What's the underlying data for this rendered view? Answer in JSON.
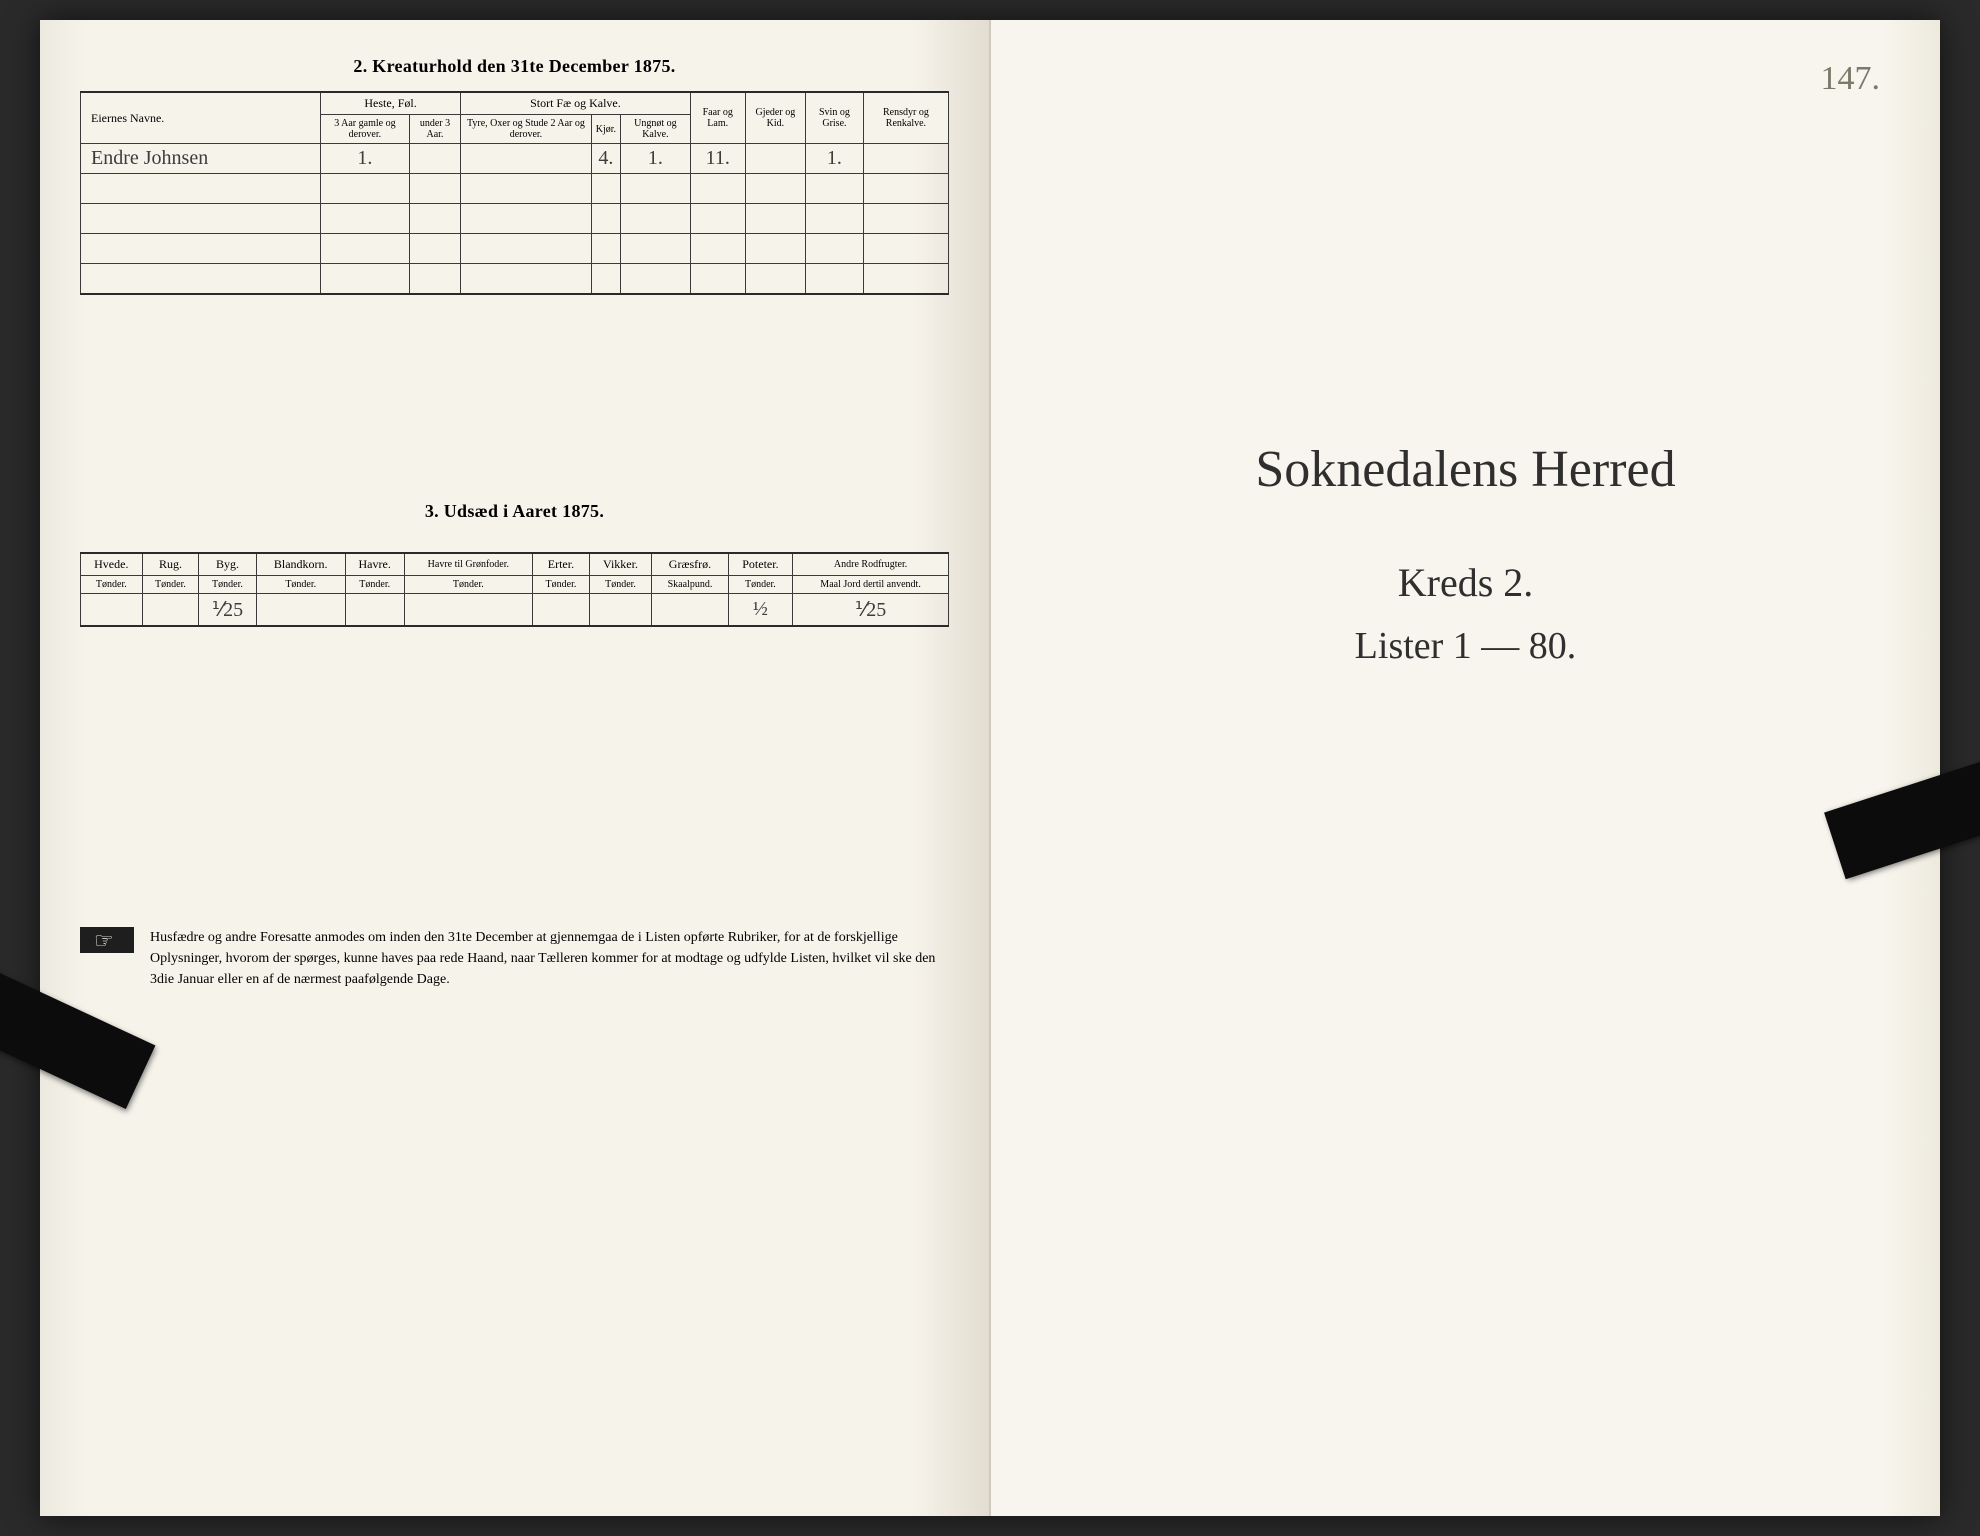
{
  "left": {
    "section2": {
      "title": "2.  Kreaturhold den 31te December 1875.",
      "col_owner": "Eiernes Navne.",
      "grp_heste": "Heste, Føl.",
      "grp_fae": "Stort Fæ og Kalve.",
      "col_faar": "Faar og Lam.",
      "col_gjed": "Gjeder og Kid.",
      "col_svin": "Svin og Grise.",
      "col_rens": "Rensdyr og Renkalve.",
      "sub_h1": "3 Aar gamle og derover.",
      "sub_h2": "under 3 Aar.",
      "sub_f1": "Tyre, Oxer og Stude 2 Aar og derover.",
      "sub_f2": "Kjør.",
      "sub_f3": "Ungnøt og Kalve.",
      "row_name": "Endre Johnsen",
      "v_h1": "1.",
      "v_f2": "4.",
      "v_f3": "1.",
      "v_faar": "11.",
      "v_svin": "1."
    },
    "section3": {
      "title": "3.  Udsæd i Aaret 1875.",
      "c_hvede": "Hvede.",
      "c_rug": "Rug.",
      "c_byg": "Byg.",
      "c_bland": "Blandkorn.",
      "c_havre": "Havre.",
      "c_havregr": "Havre til Grønfoder.",
      "c_erter": "Erter.",
      "c_vikker": "Vikker.",
      "c_graes": "Græsfrø.",
      "c_pot": "Poteter.",
      "c_rod": "Andre Rodfrugter.",
      "u_tonder": "Tønder.",
      "u_skaal": "Skaalpund.",
      "u_maal": "Maal Jord dertil anvendt.",
      "v_byg": "⅟25",
      "v_pot": "½",
      "v_rod": "⅟25"
    },
    "footnote": "Husfædre og andre Foresatte anmodes om inden den 31te December at gjennemgaa de i Listen opførte Rubriker, for at de forskjellige Oplysninger, hvorom der spørges, kunne haves paa rede Haand, naar Tælleren kommer for at modtage og udfylde Listen, hvilket vil ske den 3die Januar eller en af de nærmest paafølgende Dage."
  },
  "right": {
    "folio": "147.",
    "line1": "Soknedalens Herred",
    "line2": "Kreds 2.",
    "line3": "Lister 1 — 80."
  },
  "style": {
    "page_bg": "#f6f3eb",
    "ink": "#2a2a2a",
    "border": "#3a3a3a"
  }
}
